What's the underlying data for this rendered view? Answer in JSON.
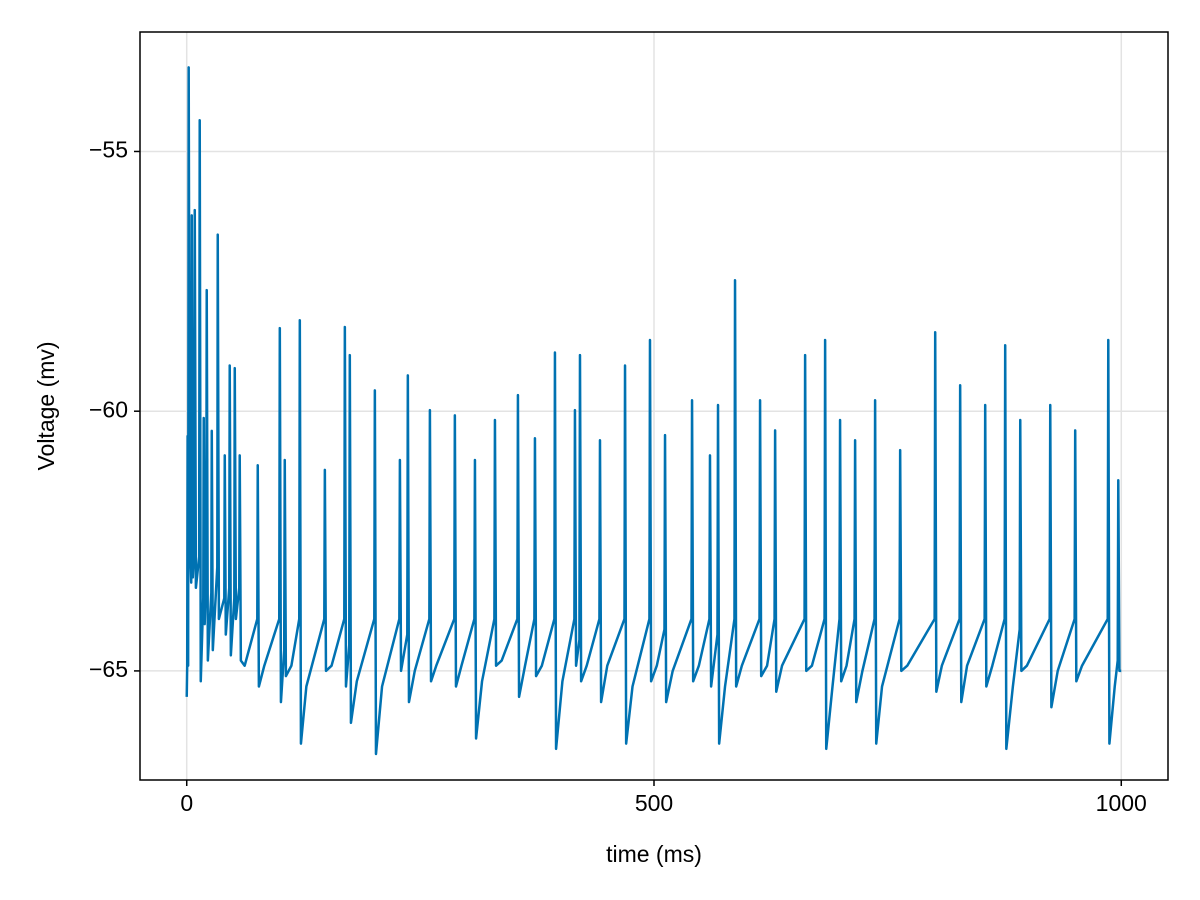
{
  "chart_data": {
    "type": "line",
    "xlabel": "time (ms)",
    "ylabel": "Voltage (mv)",
    "color": "#0072b2",
    "grid": true,
    "xlim": [
      -50,
      1050
    ],
    "xticks": [
      0,
      500,
      1000
    ],
    "ylim": [
      -67.1,
      -52.7
    ],
    "yticks": [
      {
        "value": -65,
        "label": "−65"
      },
      {
        "value": -60,
        "label": "−60"
      },
      {
        "value": -55,
        "label": "−55"
      }
    ],
    "x": [
      0,
      0.5,
      1,
      1.5,
      2.1,
      3.2,
      4.8,
      5.4,
      6.5,
      8.1,
      8.6,
      9.8,
      13.3,
      13.9,
      15,
      17.7,
      18.2,
      19.2,
      20.9,
      21.4,
      22.6,
      26.3,
      26.8,
      27.9,
      32.7,
      33.2,
      34.4,
      40.2,
      40.7,
      41.8,
      45.5,
      46,
      47.2,
      50.9,
      51.4,
      52.6,
      56.2,
      56.7,
      57.9,
      62,
      75.5,
      76,
      77.2,
      83,
      99,
      99.6,
      100.8,
      104.3,
      104.9,
      106.1,
      112,
      120.4,
      121,
      122.2,
      128,
      147.2,
      147.8,
      149,
      155,
      168.6,
      169.2,
      170.4,
      173.9,
      174.5,
      175.7,
      182,
      200.7,
      201.3,
      202.5,
      209,
      227.5,
      228.1,
      229.3,
      236,
      236.6,
      237.8,
      244,
      259.6,
      260.2,
      261.4,
      267,
      286.3,
      286.9,
      288.1,
      294,
      307.8,
      308.4,
      309.6,
      316,
      329.2,
      329.8,
      331,
      337,
      353.8,
      354.4,
      355.6,
      362,
      372,
      372.6,
      373.8,
      380,
      393.4,
      394,
      395.2,
      402,
      414.8,
      415.4,
      416.6,
      420.2,
      420.8,
      422,
      428,
      441.6,
      442.2,
      443.4,
      450,
      468.4,
      469,
      470.2,
      477,
      495.1,
      495.7,
      496.9,
      503,
      511.2,
      511.8,
      513,
      520,
      540.1,
      540.7,
      541.9,
      548,
      559.3,
      559.9,
      561.1,
      567.9,
      568.5,
      569.7,
      576,
      586.1,
      586.7,
      587.9,
      594,
      612.9,
      613.5,
      614.7,
      621,
      629,
      629.6,
      630.8,
      637,
      661.1,
      661.7,
      662.9,
      669,
      682.5,
      683.1,
      684.3,
      691,
      698.5,
      699.1,
      700.3,
      706,
      714.6,
      715.2,
      716.4,
      723,
      736,
      736.6,
      737.8,
      744,
      762.8,
      763.4,
      764.6,
      771,
      800.3,
      800.9,
      802.1,
      808,
      827,
      827.6,
      828.8,
      835,
      853.8,
      854.4,
      855.6,
      862,
      875.2,
      875.8,
      877,
      884,
      891.3,
      891.9,
      893.1,
      899,
      923.4,
      924,
      925.2,
      932,
      950.1,
      950.7,
      951.9,
      958,
      985.5,
      986.1,
      987.3,
      993,
      996.2,
      996.8,
      998,
      1000
    ],
    "values": [
      -65.5,
      -64.9,
      -60.48,
      -64.9,
      -53.38,
      -62.4,
      -63.3,
      -56.23,
      -63.2,
      -62.7,
      -56.13,
      -63.4,
      -62.8,
      -54.4,
      -65.2,
      -63.6,
      -60.13,
      -64.1,
      -63.1,
      -57.67,
      -64.8,
      -63.5,
      -60.38,
      -64.6,
      -63,
      -56.6,
      -64,
      -63.6,
      -60.85,
      -64.3,
      -63.4,
      -59.12,
      -64.7,
      -63.6,
      -59.17,
      -64,
      -63.4,
      -60.85,
      -64.8,
      -64.9,
      -64,
      -61.04,
      -65.3,
      -64.9,
      -64,
      -58.4,
      -65.6,
      -64.6,
      -60.94,
      -65.1,
      -64.9,
      -64,
      -58.25,
      -66.4,
      -65.3,
      -64,
      -61.13,
      -65,
      -64.9,
      -64,
      -58.38,
      -65.3,
      -64.5,
      -58.92,
      -66,
      -65.2,
      -64,
      -59.6,
      -66.6,
      -65.3,
      -64,
      -60.94,
      -65,
      -64.3,
      -59.31,
      -65.6,
      -65,
      -64,
      -59.98,
      -65.2,
      -64.9,
      -64,
      -60.08,
      -65.3,
      -64.9,
      -64,
      -60.94,
      -66.3,
      -65.2,
      -64,
      -60.17,
      -64.9,
      -64.8,
      -64,
      -59.69,
      -65.5,
      -64.9,
      -64,
      -60.52,
      -65.1,
      -64.9,
      -64,
      -58.87,
      -66.5,
      -65.2,
      -64,
      -59.98,
      -64.9,
      -64.4,
      -58.92,
      -65.2,
      -64.9,
      -64,
      -60.56,
      -65.6,
      -64.9,
      -64,
      -59.12,
      -66.4,
      -65.3,
      -64,
      -58.63,
      -65.2,
      -64.9,
      -64.2,
      -60.46,
      -65.6,
      -65,
      -64,
      -59.79,
      -65.2,
      -64.9,
      -64,
      -60.85,
      -65.3,
      -64.3,
      -59.88,
      -66.4,
      -65.3,
      -64,
      -57.48,
      -65.3,
      -64.9,
      -64,
      -59.79,
      -65.1,
      -64.9,
      -64,
      -60.37,
      -65.4,
      -64.9,
      -64,
      -58.92,
      -65,
      -64.9,
      -64,
      -58.63,
      -66.5,
      -65.3,
      -64,
      -60.17,
      -65.2,
      -64.9,
      -64,
      -60.56,
      -65.6,
      -65,
      -64,
      -59.79,
      -66.4,
      -65.3,
      -64,
      -60.75,
      -65,
      -64.9,
      -64,
      -58.48,
      -65.4,
      -64.9,
      -64,
      -59.5,
      -65.6,
      -64.9,
      -64,
      -59.88,
      -65.3,
      -64.9,
      -64,
      -58.73,
      -66.5,
      -65.3,
      -64.2,
      -60.17,
      -65,
      -64.9,
      -64,
      -59.88,
      -65.7,
      -65,
      -64,
      -60.37,
      -65.2,
      -64.9,
      -64,
      -58.63,
      -66.4,
      -65.3,
      -64.8,
      -61.33,
      -65,
      -65
    ]
  }
}
